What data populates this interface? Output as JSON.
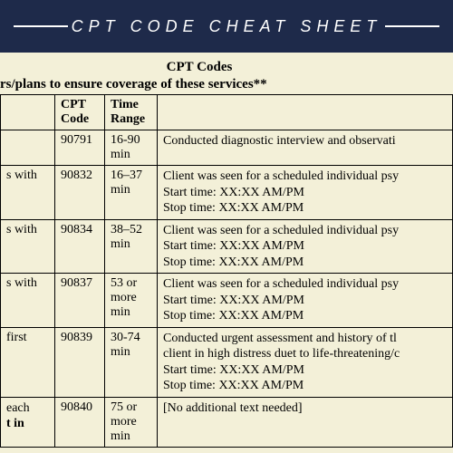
{
  "header": {
    "title": "CPT CODE CHEAT SHEET"
  },
  "section_title": "CPT Codes",
  "subtitle": "rs/plans to ensure coverage of these services**",
  "table": {
    "headers": {
      "desc": "",
      "code": "CPT Code",
      "time": "Time Range",
      "note": ""
    },
    "rows": [
      {
        "desc": "",
        "code": "90791",
        "time": "16-90 min",
        "note_lines": [
          "Conducted diagnostic interview and observati"
        ]
      },
      {
        "desc": "s with",
        "code": "90832",
        "time": "16–37 min",
        "note_lines": [
          "Client was seen for a scheduled individual psy",
          "Start time: XX:XX AM/PM",
          "Stop time: XX:XX AM/PM"
        ]
      },
      {
        "desc": "s with",
        "code": "90834",
        "time": "38–52 min",
        "note_lines": [
          "Client was seen for a scheduled individual psy",
          "Start time: XX:XX AM/PM",
          "Stop time: XX:XX AM/PM"
        ]
      },
      {
        "desc": "s with",
        "code": "90837",
        "time": "53 or more min",
        "note_lines": [
          "Client was seen for a scheduled individual psy",
          "Start time: XX:XX AM/PM",
          "Stop time: XX:XX AM/PM"
        ]
      },
      {
        "desc": "first",
        "code": "90839",
        "time": "30-74 min",
        "note_lines": [
          "Conducted urgent assessment and history of tl",
          "client in high distress duet to life-threatening/c",
          "Start time: XX:XX AM/PM",
          "Stop time: XX:XX AM/PM"
        ]
      },
      {
        "desc_lines": [
          "each",
          "t in"
        ],
        "code": "90840",
        "time": "75 or more min",
        "note_lines": [
          "[No additional text needed]"
        ]
      }
    ]
  },
  "colors": {
    "header_bg": "#1e2a4a",
    "header_text": "#ffffff",
    "page_bg": "#f3f0d8",
    "border": "#000000",
    "text": "#000000"
  }
}
